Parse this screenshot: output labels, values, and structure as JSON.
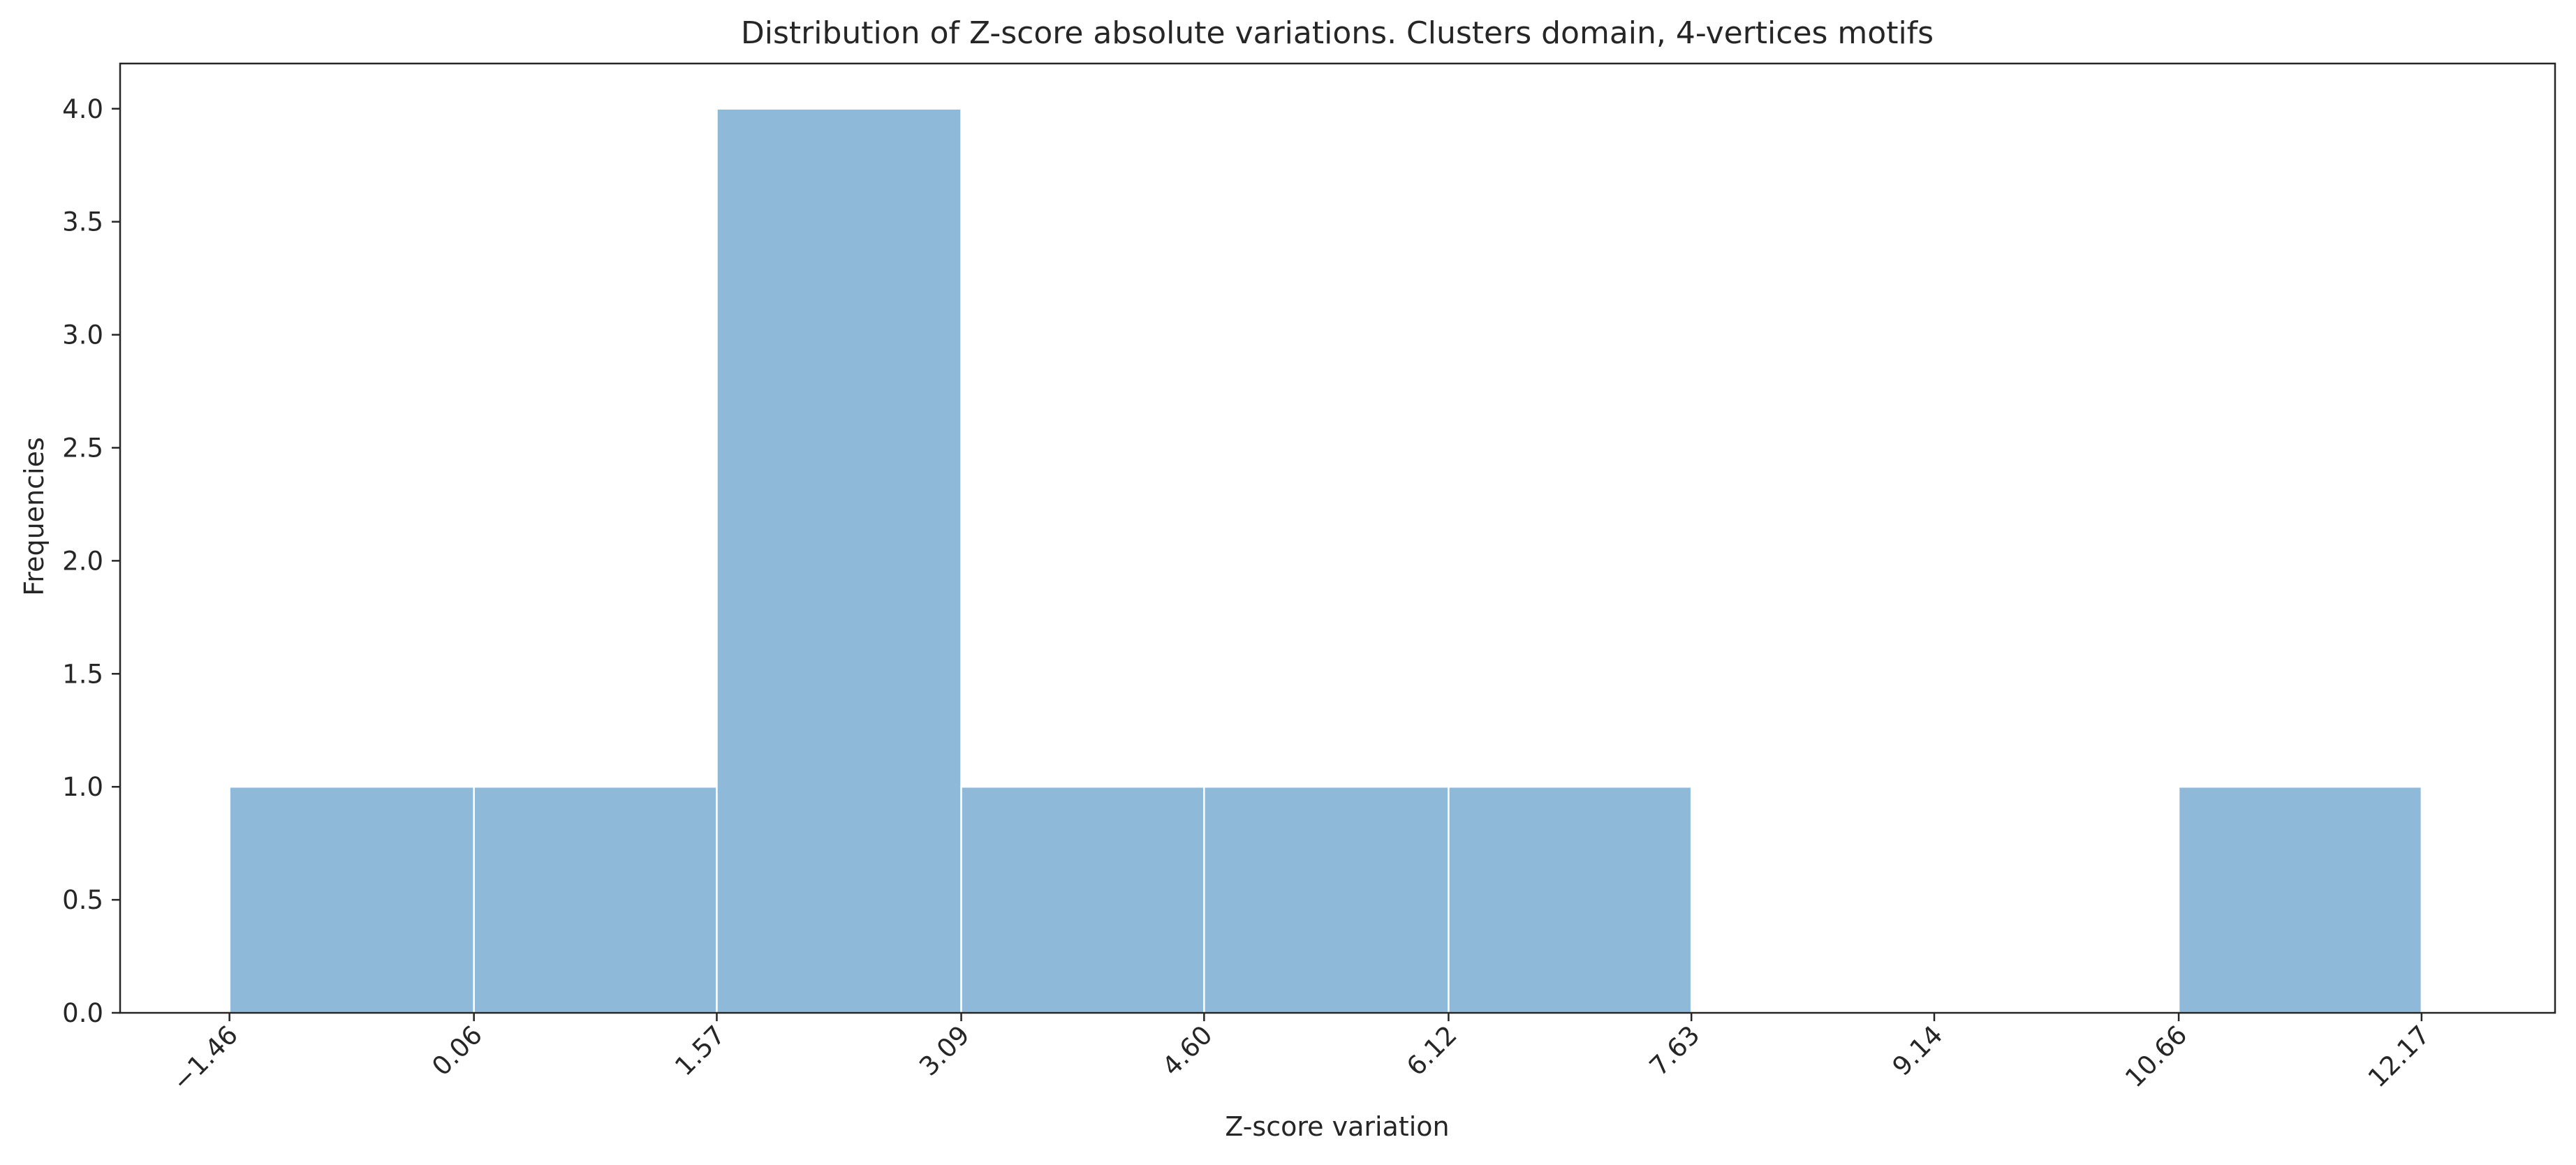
{
  "chart_data": {
    "type": "bar",
    "title": "Distribution of Z-score absolute variations. Clusters domain, 4-vertices motifs",
    "xlabel": "Z-score variation",
    "ylabel": "Frequencies",
    "bin_edges": [
      -1.46,
      0.06,
      1.57,
      3.09,
      4.6,
      6.12,
      7.63,
      9.14,
      10.66,
      12.17
    ],
    "values": [
      1,
      1,
      4,
      1,
      1,
      1,
      0,
      0,
      1
    ],
    "xticks": [
      "−1.46",
      "0.06",
      "1.57",
      "3.09",
      "4.60",
      "6.12",
      "7.63",
      "9.14",
      "10.66",
      "12.17"
    ],
    "yticks": [
      "0.0",
      "0.5",
      "1.0",
      "1.5",
      "2.0",
      "2.5",
      "3.0",
      "3.5",
      "4.0"
    ],
    "xlim": [
      -2.14,
      13.0
    ],
    "ylim": [
      0,
      4.2
    ],
    "grid": false,
    "legend": "none",
    "colors": {
      "bar": "#8fb9d9",
      "bar_edge": "#ffffff",
      "axis": "#262626",
      "text": "#262626"
    }
  }
}
